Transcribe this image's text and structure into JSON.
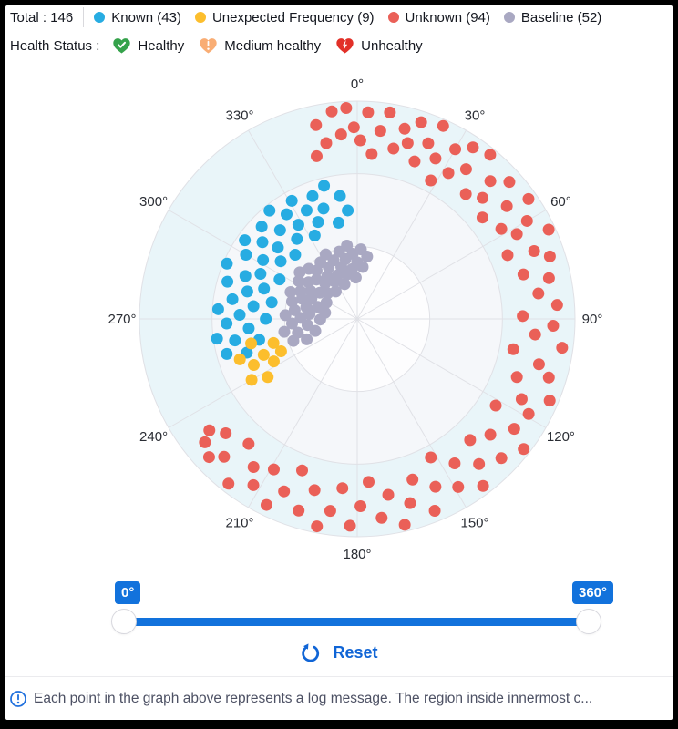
{
  "header": {
    "total_label": "Total : 146",
    "legend": [
      {
        "name": "known",
        "label": "Known (43)",
        "color": "#27ace2"
      },
      {
        "name": "unexpected-frequency",
        "label": "Unexpected Frequency (9)",
        "color": "#fcbe2d"
      },
      {
        "name": "unknown",
        "label": "Unknown (94)",
        "color": "#ea6058"
      },
      {
        "name": "baseline",
        "label": "Baseline (52)",
        "color": "#a9a8c2"
      }
    ],
    "health": {
      "title": "Health Status :",
      "items": [
        {
          "label": "Healthy",
          "icon": "heart-check-icon",
          "color": "#35a24b"
        },
        {
          "label": "Medium healthy",
          "icon": "heart-exclamation-icon",
          "color": "#f9ad74"
        },
        {
          "label": "Unhealthy",
          "icon": "heart-bolt-icon",
          "color": "#e23028"
        }
      ]
    }
  },
  "chart_data": {
    "type": "scatter",
    "coordinate": "polar",
    "angle_start": "top",
    "angle_direction": "clockwise",
    "angle_ticks": [
      "0°",
      "30°",
      "60°",
      "90°",
      "120°",
      "150°",
      "180°",
      "210°",
      "240°",
      "270°",
      "300°",
      "330°"
    ],
    "rings": 3,
    "ring_fills_outer_to_inner": [
      "#e9f5f9",
      "#f5f7fa",
      "#fdfdfe"
    ],
    "grid_color": "#e0e1e6",
    "tick_label_color": "#2a2d34",
    "point_radius_px": 6.5,
    "radius_axis": {
      "min": 0,
      "max": 1,
      "note": "radius stored as fraction of outer ring"
    },
    "series": [
      {
        "name": "Known",
        "count": 43,
        "color": "#27ace2",
        "points": [
          [
            253,
            0.53
          ],
          [
            255,
            0.62
          ],
          [
            258,
            0.46
          ],
          [
            260,
            0.57
          ],
          [
            262,
            0.65
          ],
          [
            265,
            0.5
          ],
          [
            268,
            0.6
          ],
          [
            270,
            0.42
          ],
          [
            272,
            0.54
          ],
          [
            274,
            0.64
          ],
          [
            277,
            0.48
          ],
          [
            279,
            0.58
          ],
          [
            281,
            0.4
          ],
          [
            284,
            0.52
          ],
          [
            286,
            0.62
          ],
          [
            288,
            0.45
          ],
          [
            291,
            0.55
          ],
          [
            293,
            0.65
          ],
          [
            295,
            0.49
          ],
          [
            297,
            0.4
          ],
          [
            300,
            0.59
          ],
          [
            302,
            0.51
          ],
          [
            305,
            0.63
          ],
          [
            307,
            0.44
          ],
          [
            309,
            0.56
          ],
          [
            312,
            0.49
          ],
          [
            314,
            0.61
          ],
          [
            316,
            0.41
          ],
          [
            319,
            0.54
          ],
          [
            321,
            0.64
          ],
          [
            323,
            0.46
          ],
          [
            326,
            0.58
          ],
          [
            328,
            0.51
          ],
          [
            331,
            0.62
          ],
          [
            333,
            0.43
          ],
          [
            335,
            0.55
          ],
          [
            338,
            0.48
          ],
          [
            340,
            0.6
          ],
          [
            343,
            0.53
          ],
          [
            346,
            0.63
          ],
          [
            349,
            0.45
          ],
          [
            352,
            0.57
          ],
          [
            355,
            0.5
          ]
        ]
      },
      {
        "name": "Unexpected Frequency",
        "count": 9,
        "color": "#fcbe2d",
        "points": [
          [
            237,
            0.49
          ],
          [
            240,
            0.56
          ],
          [
            243,
            0.43
          ],
          [
            246,
            0.52
          ],
          [
            249,
            0.46
          ],
          [
            251,
            0.57
          ],
          [
            254,
            0.4
          ],
          [
            257,
            0.5
          ],
          [
            247,
            0.38
          ]
        ]
      },
      {
        "name": "Unknown",
        "count": 94,
        "color": "#ea6058",
        "points": [
          [
            346,
            0.77
          ],
          [
            348,
            0.91
          ],
          [
            350,
            0.82
          ],
          [
            353,
            0.96
          ],
          [
            355,
            0.85
          ],
          [
            357,
            0.97
          ],
          [
            359,
            0.88
          ],
          [
            1,
            0.82
          ],
          [
            3,
            0.95
          ],
          [
            5,
            0.76
          ],
          [
            7,
            0.87
          ],
          [
            9,
            0.96
          ],
          [
            12,
            0.8
          ],
          [
            14,
            0.9
          ],
          [
            16,
            0.84
          ],
          [
            18,
            0.95
          ],
          [
            20,
            0.77
          ],
          [
            22,
            0.87
          ],
          [
            24,
            0.97
          ],
          [
            26,
            0.82
          ],
          [
            28,
            0.72
          ],
          [
            30,
            0.9
          ],
          [
            32,
            0.79
          ],
          [
            34,
            0.95
          ],
          [
            36,
            0.85
          ],
          [
            39,
            0.97
          ],
          [
            41,
            0.76
          ],
          [
            44,
            0.88
          ],
          [
            46,
            0.8
          ],
          [
            48,
            0.94
          ],
          [
            51,
            0.74
          ],
          [
            53,
            0.86
          ],
          [
            55,
            0.96
          ],
          [
            58,
            0.78
          ],
          [
            60,
            0.9
          ],
          [
            62,
            0.83
          ],
          [
            65,
            0.97
          ],
          [
            67,
            0.75
          ],
          [
            69,
            0.87
          ],
          [
            72,
            0.93
          ],
          [
            75,
            0.79
          ],
          [
            78,
            0.9
          ],
          [
            82,
            0.84
          ],
          [
            86,
            0.92
          ],
          [
            89,
            0.76
          ],
          [
            92,
            0.9
          ],
          [
            95,
            0.82
          ],
          [
            98,
            0.95
          ],
          [
            101,
            0.73
          ],
          [
            104,
            0.86
          ],
          [
            107,
            0.92
          ],
          [
            110,
            0.78
          ],
          [
            113,
            0.96
          ],
          [
            116,
            0.84
          ],
          [
            119,
            0.9
          ],
          [
            122,
            0.75
          ],
          [
            125,
            0.88
          ],
          [
            128,
            0.97
          ],
          [
            131,
            0.81
          ],
          [
            134,
            0.92
          ],
          [
            137,
            0.76
          ],
          [
            140,
            0.87
          ],
          [
            143,
            0.96
          ],
          [
            146,
            0.8
          ],
          [
            149,
            0.9
          ],
          [
            152,
            0.72
          ],
          [
            155,
            0.85
          ],
          [
            158,
            0.95
          ],
          [
            161,
            0.78
          ],
          [
            164,
            0.88
          ],
          [
            167,
            0.97
          ],
          [
            170,
            0.82
          ],
          [
            173,
            0.92
          ],
          [
            176,
            0.75
          ],
          [
            179,
            0.86
          ],
          [
            182,
            0.95
          ],
          [
            185,
            0.78
          ],
          [
            188,
            0.89
          ],
          [
            191,
            0.97
          ],
          [
            194,
            0.81
          ],
          [
            197,
            0.92
          ],
          [
            200,
            0.74
          ],
          [
            203,
            0.86
          ],
          [
            206,
            0.95
          ],
          [
            209,
            0.79
          ],
          [
            212,
            0.9
          ],
          [
            215,
            0.83
          ],
          [
            218,
            0.96
          ],
          [
            221,
            0.76
          ],
          [
            224,
            0.88
          ],
          [
            227,
            0.93
          ],
          [
            229,
            0.8
          ],
          [
            231,
            0.9
          ],
          [
            233,
            0.85
          ]
        ]
      },
      {
        "name": "Baseline",
        "count": 52,
        "color": "#a9a8c2",
        "points": [
          [
            248,
            0.25
          ],
          [
            251,
            0.31
          ],
          [
            254,
            0.2
          ],
          [
            257,
            0.28
          ],
          [
            260,
            0.34
          ],
          [
            263,
            0.23
          ],
          [
            266,
            0.3
          ],
          [
            269,
            0.17
          ],
          [
            271,
            0.26
          ],
          [
            273,
            0.33
          ],
          [
            276,
            0.22
          ],
          [
            278,
            0.29
          ],
          [
            281,
            0.15
          ],
          [
            283,
            0.24
          ],
          [
            285,
            0.31
          ],
          [
            287,
            0.19
          ],
          [
            290,
            0.27
          ],
          [
            292,
            0.33
          ],
          [
            294,
            0.23
          ],
          [
            296,
            0.29
          ],
          [
            298,
            0.16
          ],
          [
            301,
            0.25
          ],
          [
            303,
            0.32
          ],
          [
            305,
            0.21
          ],
          [
            307,
            0.28
          ],
          [
            309,
            0.34
          ],
          [
            311,
            0.18
          ],
          [
            314,
            0.26
          ],
          [
            316,
            0.32
          ],
          [
            318,
            0.22
          ],
          [
            320,
            0.29
          ],
          [
            322,
            0.16
          ],
          [
            325,
            0.24
          ],
          [
            327,
            0.31
          ],
          [
            329,
            0.2
          ],
          [
            331,
            0.27
          ],
          [
            334,
            0.33
          ],
          [
            336,
            0.22
          ],
          [
            338,
            0.29
          ],
          [
            340,
            0.17
          ],
          [
            343,
            0.25
          ],
          [
            345,
            0.32
          ],
          [
            347,
            0.21
          ],
          [
            349,
            0.28
          ],
          [
            352,
            0.34
          ],
          [
            354,
            0.23
          ],
          [
            356,
            0.3
          ],
          [
            358,
            0.19
          ],
          [
            0,
            0.26
          ],
          [
            3,
            0.32
          ],
          [
            6,
            0.24
          ],
          [
            9,
            0.29
          ]
        ]
      }
    ]
  },
  "slider": {
    "min_value_label": "0°",
    "max_value_label": "360°",
    "min": 0,
    "max": 360,
    "track_color": "#1272dc",
    "reset_label": "Reset",
    "reset_color": "#1065d6"
  },
  "footer": {
    "note": "Each point in the graph above represents a log message. The region inside innermost c..."
  }
}
